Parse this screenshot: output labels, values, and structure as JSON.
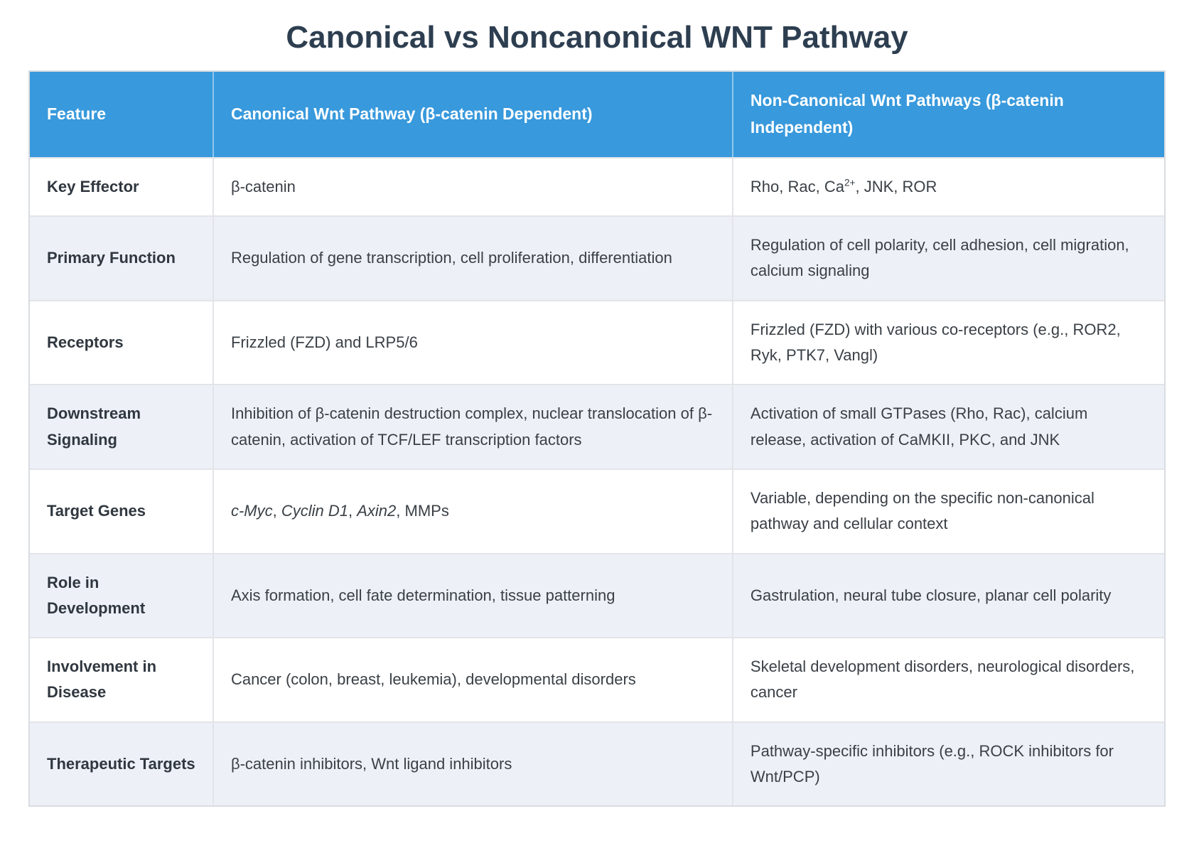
{
  "title": "Canonical vs Noncanonical WNT Pathway",
  "colors": {
    "header_bg": "#3899dc",
    "header_text": "#ffffff",
    "title_color": "#2d3e50",
    "stripe": "#edf1f7",
    "grid": "#e2e4e8",
    "outer_border": "#d9dce0",
    "body_text": "#3a4046",
    "feature_text": "#30373f"
  },
  "table": {
    "columns": [
      "Feature",
      "Canonical Wnt Pathway (β-catenin Dependent)",
      "Non-Canonical Wnt Pathways (β-catenin Independent)"
    ],
    "rows": [
      {
        "feature": "Key Effector",
        "canonical": [
          {
            "t": "β-catenin"
          }
        ],
        "noncanonical": [
          {
            "t": "Rho, Rac, Ca"
          },
          {
            "t": "2+",
            "sup": true
          },
          {
            "t": ", JNK, ROR"
          }
        ]
      },
      {
        "feature": "Primary Function",
        "canonical": [
          {
            "t": "Regulation of gene transcription, cell proliferation, differentiation"
          }
        ],
        "noncanonical": [
          {
            "t": "Regulation of cell polarity, cell adhesion, cell migration, calcium signaling"
          }
        ]
      },
      {
        "feature": "Receptors",
        "canonical": [
          {
            "t": "Frizzled (FZD) and LRP5/6"
          }
        ],
        "noncanonical": [
          {
            "t": "Frizzled (FZD) with various co-receptors (e.g., ROR2, Ryk, PTK7, Vangl)"
          }
        ]
      },
      {
        "feature": "Downstream Signaling",
        "canonical": [
          {
            "t": "Inhibition of β-catenin destruction complex, nuclear translocation of β-catenin, activation of TCF/LEF transcription factors"
          }
        ],
        "noncanonical": [
          {
            "t": "Activation of small GTPases (Rho, Rac), calcium release, activation of CaMKII, PKC, and JNK"
          }
        ]
      },
      {
        "feature": "Target Genes",
        "canonical": [
          {
            "t": "c-Myc",
            "i": true
          },
          {
            "t": ", "
          },
          {
            "t": "Cyclin D1",
            "i": true
          },
          {
            "t": ", "
          },
          {
            "t": "Axin2",
            "i": true
          },
          {
            "t": ", MMPs"
          }
        ],
        "noncanonical": [
          {
            "t": "Variable, depending on the specific non-canonical pathway and cellular context"
          }
        ]
      },
      {
        "feature": "Role in Development",
        "canonical": [
          {
            "t": "Axis formation, cell fate determination, tissue patterning"
          }
        ],
        "noncanonical": [
          {
            "t": "Gastrulation, neural tube closure, planar cell polarity"
          }
        ]
      },
      {
        "feature": "Involvement in Disease",
        "canonical": [
          {
            "t": "Cancer (colon, breast, leukemia), developmental disorders"
          }
        ],
        "noncanonical": [
          {
            "t": "Skeletal development disorders, neurological disorders, cancer"
          }
        ]
      },
      {
        "feature": "Therapeutic Targets",
        "canonical": [
          {
            "t": "β-catenin inhibitors, Wnt ligand inhibitors"
          }
        ],
        "noncanonical": [
          {
            "t": "Pathway-specific inhibitors (e.g., ROCK inhibitors for Wnt/PCP)"
          }
        ]
      }
    ]
  }
}
